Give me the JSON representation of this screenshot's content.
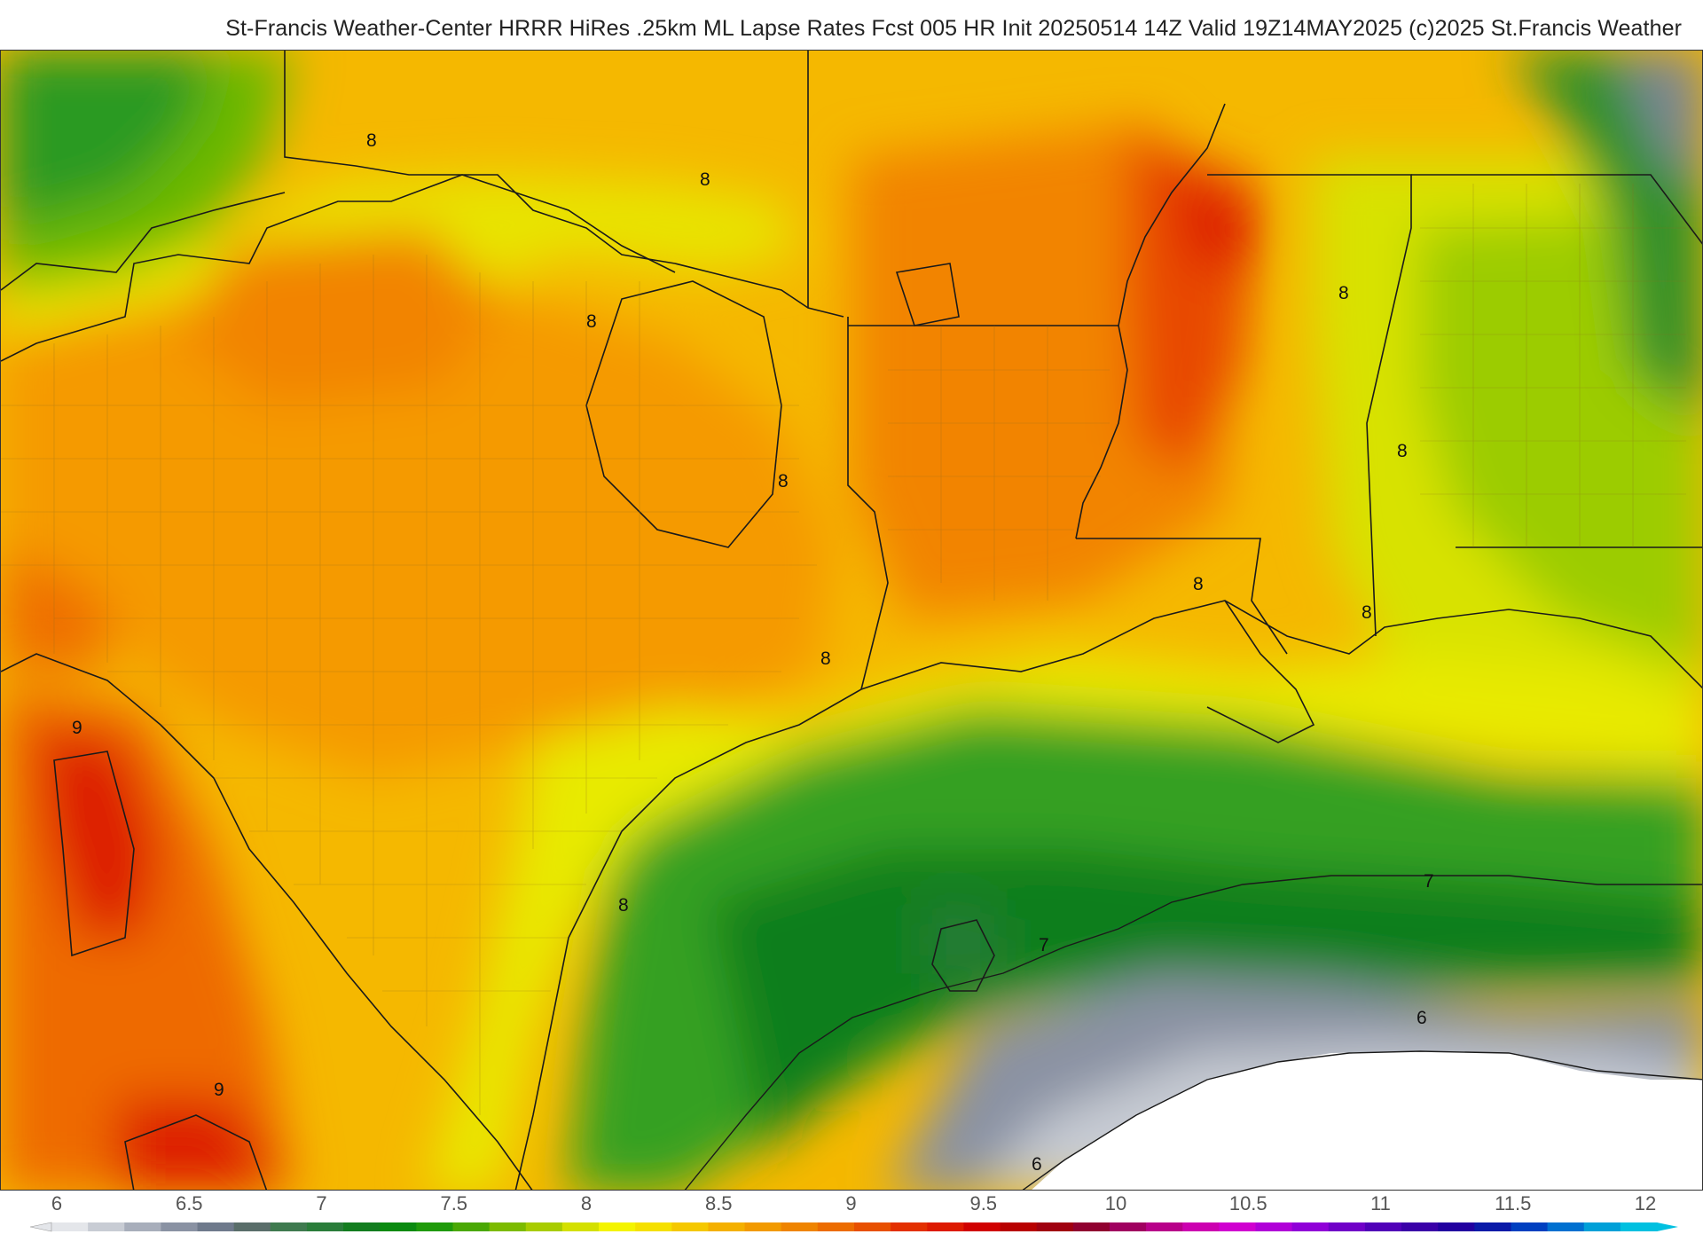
{
  "header": {
    "title": "St-Francis Weather-Center HRRR HiRes .25km ML Lapse Rates  Fcst 005 HR Init 20250514 14Z  Valid 19Z14MAY2025     (c)2025 St.Francis Weather"
  },
  "map": {
    "contour_labels": [
      "8",
      "8",
      "8",
      "8",
      "8",
      "8",
      "8",
      "8",
      "8",
      "9",
      "9",
      "7",
      "7",
      "6",
      "6"
    ]
  },
  "colorbar": {
    "ticks": [
      "6",
      "6.5",
      "7",
      "7.5",
      "8",
      "8.5",
      "9",
      "9.5",
      "10",
      "10.5",
      "11",
      "11.5",
      "12"
    ],
    "colors": [
      "#e4e6ea",
      "#c8ccd4",
      "#a8aebb",
      "#8a92a3",
      "#6f7a8c",
      "#5a6e6a",
      "#3f7a4f",
      "#2a7d3a",
      "#137d1f",
      "#0a8a10",
      "#1f9a0a",
      "#4aa805",
      "#7cbb00",
      "#a8cc00",
      "#d4e000",
      "#f4f400",
      "#f5e000",
      "#f5c800",
      "#f4b000",
      "#f29a00",
      "#ef8400",
      "#ec6c00",
      "#e85000",
      "#e33000",
      "#dd1a00",
      "#d00000",
      "#b80000",
      "#a00010",
      "#900030",
      "#a00060",
      "#b8008a",
      "#cc00b0",
      "#d000d0",
      "#b000d8",
      "#9000d8",
      "#7000c8",
      "#5000b8",
      "#3a00a8",
      "#2200a0",
      "#0a1aa8",
      "#0040c0",
      "#0070d0",
      "#00a0d8",
      "#00c0e0"
    ]
  }
}
